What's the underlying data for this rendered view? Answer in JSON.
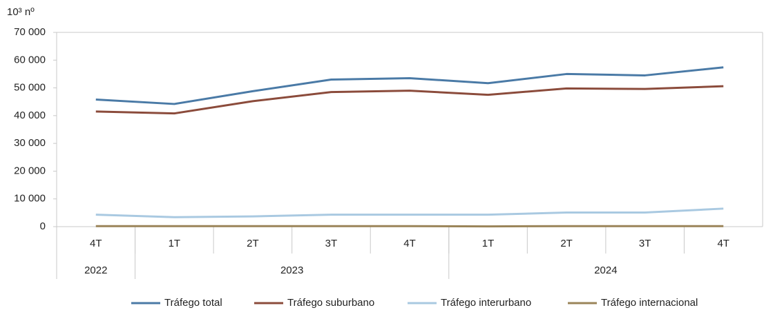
{
  "chart_data": {
    "type": "line",
    "y_unit": "10³ nº",
    "categories": [
      "4T",
      "1T",
      "2T",
      "3T",
      "4T",
      "1T",
      "2T",
      "3T",
      "4T"
    ],
    "x_groups": [
      {
        "label": "2022",
        "span": 1
      },
      {
        "label": "2023",
        "span": 4
      },
      {
        "label": "2024",
        "span": 4
      }
    ],
    "series": [
      {
        "name": "Tráfego total",
        "color": "#4a7aa6",
        "values": [
          45800,
          44200,
          48800,
          53000,
          53500,
          51700,
          55000,
          54500,
          57400
        ]
      },
      {
        "name": "Tráfego suburbano",
        "color": "#8b4b3b",
        "values": [
          41500,
          40800,
          45200,
          48500,
          49000,
          47500,
          49800,
          49600,
          50600
        ]
      },
      {
        "name": "Tráfego interurbano",
        "color": "#a9c9e1",
        "values": [
          4300,
          3400,
          3700,
          4300,
          4300,
          4300,
          5100,
          5100,
          6500
        ]
      },
      {
        "name": "Tráfego internacional",
        "color": "#9a8459",
        "values": [
          200,
          200,
          200,
          200,
          200,
          100,
          200,
          200,
          200
        ]
      }
    ],
    "ylim": [
      0,
      70000
    ],
    "yticks": [
      {
        "value": 0,
        "label": "0"
      },
      {
        "value": 10000,
        "label": "10 000"
      },
      {
        "value": 20000,
        "label": "20 000"
      },
      {
        "value": 30000,
        "label": "30 000"
      },
      {
        "value": 40000,
        "label": "40 000"
      },
      {
        "value": 50000,
        "label": "50 000"
      },
      {
        "value": 60000,
        "label": "60 000"
      },
      {
        "value": 70000,
        "label": "70 000"
      }
    ],
    "legend": "bottom"
  }
}
